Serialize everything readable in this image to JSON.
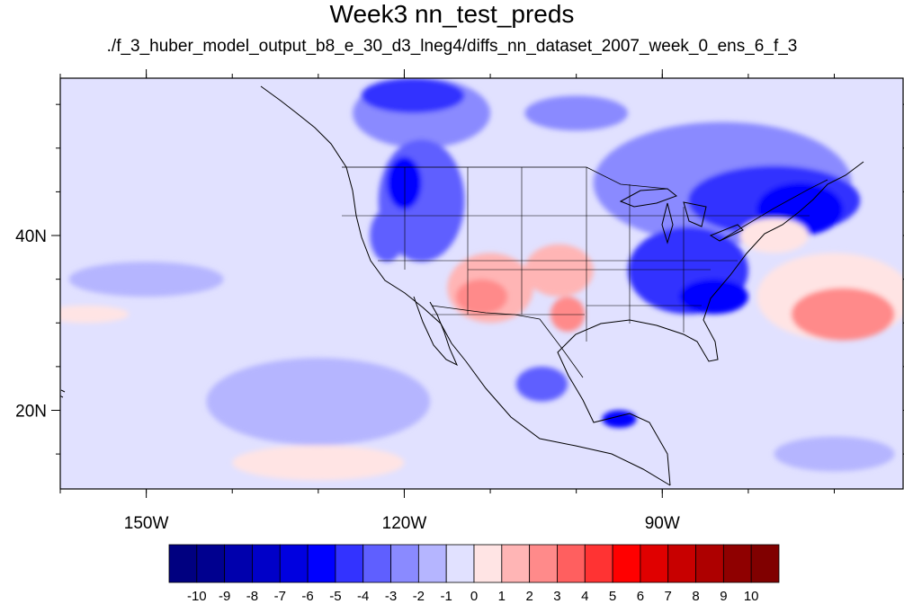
{
  "title": "Week3 nn_test_preds",
  "subtitle": "./f_3_huber_model_output_b8_e_30_d3_lneg4/diffs_nn_dataset_2007_week_0_ens_6_f_3",
  "map": {
    "lon_range": [
      -160,
      -62
    ],
    "lat_range": [
      11,
      58
    ],
    "lon_ticks": [
      {
        "value": -150,
        "label": "150W"
      },
      {
        "value": -120,
        "label": "120W"
      },
      {
        "value": -90,
        "label": "90W"
      }
    ],
    "lat_ticks": [
      {
        "value": 40,
        "label": "40N"
      },
      {
        "value": 20,
        "label": "20N"
      }
    ],
    "lon_minor_step": 10,
    "lat_minor_step": 5
  },
  "colorbar": {
    "labels": [
      "-10",
      "-9",
      "-8",
      "-7",
      "-6",
      "-5",
      "-4",
      "-3",
      "-2",
      "-1",
      "0",
      "1",
      "2",
      "3",
      "4",
      "5",
      "6",
      "7",
      "8",
      "9",
      "10"
    ],
    "colors": [
      "#000080",
      "#00008f",
      "#0000ad",
      "#0000c8",
      "#0000e0",
      "#0000ff",
      "#3333ff",
      "#5f5fff",
      "#8a8aff",
      "#b5b5ff",
      "#e1e1ff",
      "#ffe4e4",
      "#ffb5b5",
      "#ff8a8a",
      "#ff5f5f",
      "#ff3333",
      "#ff0000",
      "#e00000",
      "#c80000",
      "#ad0000",
      "#8f0000",
      "#800000"
    ]
  },
  "features": [
    {
      "kind": "neg",
      "level": 2,
      "lon": -118,
      "lat": 54,
      "rx": 8,
      "ry": 4
    },
    {
      "kind": "neg",
      "level": 4,
      "lon": -119,
      "lat": 56,
      "rx": 6,
      "ry": 2
    },
    {
      "kind": "neg",
      "level": 3,
      "lon": -118,
      "lat": 44,
      "rx": 5,
      "ry": 7
    },
    {
      "kind": "neg",
      "level": 5,
      "lon": -120,
      "lat": 46,
      "rx": 2,
      "ry": 3
    },
    {
      "kind": "neg",
      "level": 3,
      "lon": -122,
      "lat": 40,
      "rx": 2,
      "ry": 3
    },
    {
      "kind": "neg",
      "level": 2,
      "lon": -100,
      "lat": 54,
      "rx": 6,
      "ry": 2
    },
    {
      "kind": "neg",
      "level": 2,
      "lon": -83,
      "lat": 46,
      "rx": 15,
      "ry": 7
    },
    {
      "kind": "neg",
      "level": 4,
      "lon": -77,
      "lat": 44,
      "rx": 10,
      "ry": 4
    },
    {
      "kind": "neg",
      "level": 5,
      "lon": -74,
      "lat": 43,
      "rx": 5,
      "ry": 3
    },
    {
      "kind": "neg",
      "level": 4,
      "lon": -87,
      "lat": 36,
      "rx": 7,
      "ry": 5
    },
    {
      "kind": "neg",
      "level": 5,
      "lon": -84,
      "lat": 33,
      "rx": 4,
      "ry": 2
    },
    {
      "kind": "neg",
      "level": 3,
      "lon": -104,
      "lat": 23,
      "rx": 3,
      "ry": 2
    },
    {
      "kind": "neg",
      "level": 5,
      "lon": -95,
      "lat": 19,
      "rx": 2,
      "ry": 1
    },
    {
      "kind": "neg",
      "level": 1,
      "lon": -130,
      "lat": 21,
      "rx": 13,
      "ry": 5
    },
    {
      "kind": "neg",
      "level": 1,
      "lon": -150,
      "lat": 35,
      "rx": 9,
      "ry": 2
    },
    {
      "kind": "neg",
      "level": 1,
      "lon": -70,
      "lat": 15,
      "rx": 7,
      "ry": 2
    },
    {
      "kind": "pos",
      "level": 1,
      "lon": -70,
      "lat": 33,
      "rx": 9,
      "ry": 5
    },
    {
      "kind": "pos",
      "level": 3,
      "lon": -69,
      "lat": 31,
      "rx": 6,
      "ry": 3
    },
    {
      "kind": "pos",
      "level": 1,
      "lon": -77,
      "lat": 40,
      "rx": 4,
      "ry": 2
    },
    {
      "kind": "pos",
      "level": 2,
      "lon": -110,
      "lat": 34,
      "rx": 5,
      "ry": 4
    },
    {
      "kind": "pos",
      "level": 3,
      "lon": -111,
      "lat": 33,
      "rx": 3,
      "ry": 2
    },
    {
      "kind": "pos",
      "level": 2,
      "lon": -102,
      "lat": 36,
      "rx": 4,
      "ry": 3
    },
    {
      "kind": "pos",
      "level": 3,
      "lon": -101,
      "lat": 31,
      "rx": 2,
      "ry": 2
    },
    {
      "kind": "pos",
      "level": 1,
      "lon": -157,
      "lat": 31,
      "rx": 5,
      "ry": 1
    },
    {
      "kind": "pos",
      "level": 1,
      "lon": -130,
      "lat": 14,
      "rx": 10,
      "ry": 2
    }
  ]
}
